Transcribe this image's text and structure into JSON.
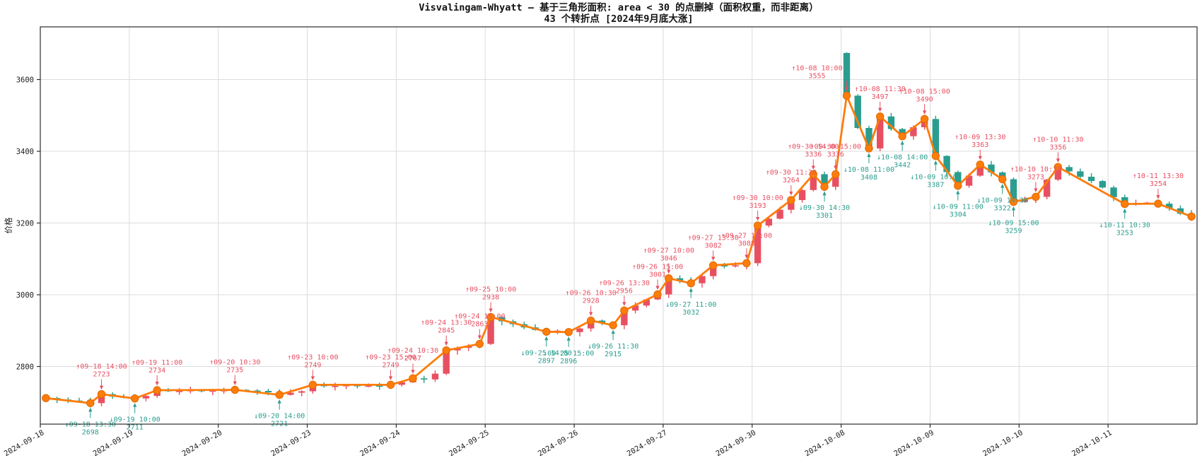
{
  "title": "Visvalingam-Whyatt — 基于三角形面积: area < 30 的点删掉（面积权重，而非距离）",
  "subtitle": "43 个转折点 [2024年9月底大涨]",
  "chart_data": {
    "type": "candlestick+line",
    "title": "Visvalingam-Whyatt — 基于三角形面积: area < 30 的点删掉（面积权重，而非距离）",
    "subtitle": "43 个转折点 [2024年9月底大涨]",
    "ylabel": "价格",
    "yticks": [
      2800,
      3000,
      3200,
      3400,
      3600
    ],
    "ylim": [
      2639,
      3747
    ],
    "grid": true,
    "legend": "none",
    "slots": [
      "10:00",
      "10:30",
      "11:00",
      "11:30",
      "13:30",
      "14:00",
      "14:30",
      "15:00"
    ],
    "days": [
      "2024-09-18",
      "2024-09-19",
      "2024-09-20",
      "2024-09-23",
      "2024-09-24",
      "2024-09-25",
      "2024-09-26",
      "2024-09-27",
      "2024-09-30",
      "2024-10-08",
      "2024-10-09",
      "2024-10-10",
      "2024-10-11"
    ],
    "closes": [
      [
        2712,
        2708,
        2705,
        2703,
        2698,
        2723,
        2716,
        2714
      ],
      [
        2711,
        2718,
        2734,
        2731,
        2732,
        2734,
        2732,
        2733
      ],
      [
        2734,
        2735,
        2733,
        2732,
        2728,
        2721,
        2727,
        2731
      ],
      [
        2749,
        2745,
        2746,
        2748,
        2745,
        2747,
        2746,
        2749
      ],
      [
        2756,
        2767,
        2764,
        2780,
        2845,
        2852,
        2857,
        2863
      ],
      [
        2938,
        2926,
        2918,
        2909,
        2902,
        2897,
        2900,
        2896
      ],
      [
        2906,
        2928,
        2921,
        2915,
        2956,
        2970,
        2987,
        3001
      ],
      [
        3046,
        3039,
        3032,
        3052,
        3082,
        3079,
        3082,
        3088
      ],
      [
        3193,
        3212,
        3237,
        3264,
        3292,
        3336,
        3301,
        3336
      ],
      [
        3555,
        3465,
        3408,
        3497,
        3462,
        3442,
        3467,
        3490
      ],
      [
        3387,
        3342,
        3304,
        3332,
        3363,
        3341,
        3322,
        3259
      ],
      [
        3266,
        3273,
        3321,
        3356,
        3344,
        3329,
        3317,
        3299
      ],
      [
        3272,
        3253,
        3256,
        3257,
        3254,
        3241,
        3226,
        3218
      ]
    ],
    "day_open_overrides": {
      "2024-10-08": 3674
    },
    "turning_points": [
      {
        "date": "09-18",
        "time": "10:00",
        "price": 2712,
        "dir": "up",
        "labeled": false
      },
      {
        "date": "09-18",
        "time": "13:30",
        "price": 2698,
        "dir": "down",
        "labeled": true
      },
      {
        "date": "09-18",
        "time": "14:00",
        "price": 2723,
        "dir": "up",
        "labeled": true
      },
      {
        "date": "09-19",
        "time": "10:00",
        "price": 2711,
        "dir": "down",
        "labeled": true
      },
      {
        "date": "09-19",
        "time": "11:00",
        "price": 2734,
        "dir": "up",
        "labeled": true
      },
      {
        "date": "09-20",
        "time": "10:30",
        "price": 2735,
        "dir": "up",
        "labeled": true
      },
      {
        "date": "09-20",
        "time": "14:00",
        "price": 2721,
        "dir": "down",
        "labeled": true
      },
      {
        "date": "09-23",
        "time": "10:00",
        "price": 2749,
        "dir": "up",
        "labeled": true
      },
      {
        "date": "09-23",
        "time": "15:00",
        "price": 2749,
        "dir": "up",
        "labeled": true
      },
      {
        "date": "09-24",
        "time": "10:30",
        "price": 2767,
        "dir": "up",
        "labeled": true
      },
      {
        "date": "09-24",
        "time": "13:30",
        "price": 2845,
        "dir": "up",
        "labeled": true
      },
      {
        "date": "09-24",
        "time": "15:00",
        "price": 2863,
        "dir": "up",
        "labeled": true
      },
      {
        "date": "09-25",
        "time": "10:00",
        "price": 2938,
        "dir": "up",
        "labeled": true
      },
      {
        "date": "09-25",
        "time": "14:00",
        "price": 2897,
        "dir": "down",
        "labeled": true
      },
      {
        "date": "09-25",
        "time": "15:00",
        "price": 2896,
        "dir": "down",
        "labeled": true
      },
      {
        "date": "09-26",
        "time": "10:30",
        "price": 2928,
        "dir": "up",
        "labeled": true
      },
      {
        "date": "09-26",
        "time": "11:30",
        "price": 2915,
        "dir": "down",
        "labeled": true
      },
      {
        "date": "09-26",
        "time": "13:30",
        "price": 2956,
        "dir": "up",
        "labeled": true
      },
      {
        "date": "09-26",
        "time": "15:00",
        "price": 3001,
        "dir": "up",
        "labeled": true
      },
      {
        "date": "09-27",
        "time": "10:00",
        "price": 3046,
        "dir": "up",
        "labeled": true
      },
      {
        "date": "09-27",
        "time": "11:00",
        "price": 3032,
        "dir": "down",
        "labeled": true
      },
      {
        "date": "09-27",
        "time": "13:30",
        "price": 3082,
        "dir": "up",
        "labeled": true
      },
      {
        "date": "09-27",
        "time": "15:00",
        "price": 3088,
        "dir": "up",
        "labeled": true
      },
      {
        "date": "09-30",
        "time": "10:00",
        "price": 3193,
        "dir": "up",
        "labeled": true
      },
      {
        "date": "09-30",
        "time": "11:30",
        "price": 3264,
        "dir": "up",
        "labeled": true
      },
      {
        "date": "09-30",
        "time": "14:00",
        "price": 3336,
        "dir": "up",
        "labeled": true
      },
      {
        "date": "09-30",
        "time": "14:30",
        "price": 3301,
        "dir": "down",
        "labeled": true
      },
      {
        "date": "09-30",
        "time": "15:00",
        "price": 3336,
        "dir": "up",
        "labeled": true
      },
      {
        "date": "10-08",
        "time": "10:00",
        "price": 3555,
        "dir": "up",
        "labeled": true,
        "ox": -42
      },
      {
        "date": "10-08",
        "time": "11:00",
        "price": 3408,
        "dir": "down",
        "labeled": true
      },
      {
        "date": "10-08",
        "time": "11:30",
        "price": 3497,
        "dir": "up",
        "labeled": true
      },
      {
        "date": "10-08",
        "time": "14:00",
        "price": 3442,
        "dir": "down",
        "labeled": true
      },
      {
        "date": "10-08",
        "time": "15:00",
        "price": 3490,
        "dir": "up",
        "labeled": true
      },
      {
        "date": "10-09",
        "time": "10:00",
        "price": 3387,
        "dir": "down",
        "labeled": true
      },
      {
        "date": "10-09",
        "time": "11:00",
        "price": 3304,
        "dir": "down",
        "labeled": true
      },
      {
        "date": "10-09",
        "time": "13:30",
        "price": 3363,
        "dir": "up",
        "labeled": true
      },
      {
        "date": "10-09",
        "time": "14:30",
        "price": 3322,
        "dir": "down",
        "labeled": true
      },
      {
        "date": "10-09",
        "time": "15:00",
        "price": 3259,
        "dir": "down",
        "labeled": true
      },
      {
        "date": "10-10",
        "time": "10:30",
        "price": 3273,
        "dir": "up",
        "labeled": true
      },
      {
        "date": "10-10",
        "time": "11:30",
        "price": 3356,
        "dir": "up",
        "labeled": true
      },
      {
        "date": "10-11",
        "time": "10:30",
        "price": 3253,
        "dir": "down",
        "labeled": true
      },
      {
        "date": "10-11",
        "time": "13:30",
        "price": 3254,
        "dir": "up",
        "labeled": true
      },
      {
        "date": "10-11",
        "time": "15:00",
        "price": 3218,
        "dir": "up",
        "labeled": false
      }
    ],
    "colors": {
      "up": "#e85062",
      "down": "#2a9d8f",
      "line": "#fc7d0b",
      "marker": "#fc7d0b",
      "marker_edge": "#e06a00",
      "grid": "#dcdcdc",
      "spine": "#2b2b2b",
      "tick_text": "#1c1c1c"
    }
  }
}
